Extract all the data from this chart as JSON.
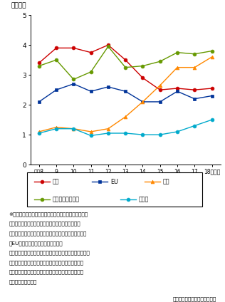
{
  "ylabel": "（兆円）",
  "years": [
    8,
    9,
    10,
    11,
    12,
    13,
    14,
    15,
    16,
    17,
    18
  ],
  "year_labels": [
    "平成8",
    "9",
    "10",
    "11",
    "12",
    "13",
    "14",
    "15",
    "16",
    "17",
    "18（年）"
  ],
  "series": {
    "米国": {
      "values": [
        3.4,
        3.9,
        3.9,
        3.75,
        4.0,
        3.5,
        2.9,
        2.5,
        2.55,
        2.5,
        2.55
      ],
      "color": "#cc0000",
      "marker": "o"
    },
    "EU": {
      "values": [
        2.1,
        2.5,
        2.7,
        2.45,
        2.6,
        2.45,
        2.1,
        2.1,
        2.45,
        2.2,
        2.3
      ],
      "color": "#003399",
      "marker": "s"
    },
    "中国": {
      "values": [
        1.1,
        1.25,
        1.2,
        1.1,
        1.2,
        1.6,
        2.1,
        2.65,
        3.25,
        3.25,
        3.6
      ],
      "color": "#ff8800",
      "marker": "^"
    },
    "アジア（除中国）": {
      "values": [
        3.3,
        3.5,
        2.85,
        3.1,
        3.95,
        3.25,
        3.3,
        3.45,
        3.75,
        3.7,
        3.8
      ],
      "color": "#669900",
      "marker": "o"
    },
    "その他": {
      "values": [
        1.05,
        1.2,
        1.2,
        0.97,
        1.05,
        1.05,
        1.0,
        1.0,
        1.1,
        1.3,
        1.5
      ],
      "color": "#00aacc",
      "marker": "o"
    }
  },
  "ylim": [
    0,
    5
  ],
  "yticks": [
    0,
    1,
    2,
    3,
    4,
    5
  ],
  "legend_order": [
    "米国",
    "EU",
    "中国",
    "アジア（除中国）",
    "その他"
  ],
  "legend_row1": [
    "米国",
    "EU",
    "中国"
  ],
  "legend_row2": [
    "アジア（除中国）",
    "その他"
  ],
  "note1_lines": [
    "※　アジア（除中国）は韓国、台湾、シンガポール、マ",
    "　レーシア、インドネシア、フィリピン、インドへ",
    "　の輸出額の合計。その他は輸出総額から米国、中国、",
    "　EU、アジア（除中国）を引いた値",
    "　情報通信関連財は電算機類（含周辺機器）、映像機器、",
    "　音響機器、通信機、電気計測機器、科学光学機器、",
    "　記録媒体（含記録済）、音響・映像機器の部分品、",
    "　半導体等電子部品"
  ],
  "note2": "財務省「貳易統計」により作成",
  "markersize": 3.5,
  "linewidth": 1.0
}
